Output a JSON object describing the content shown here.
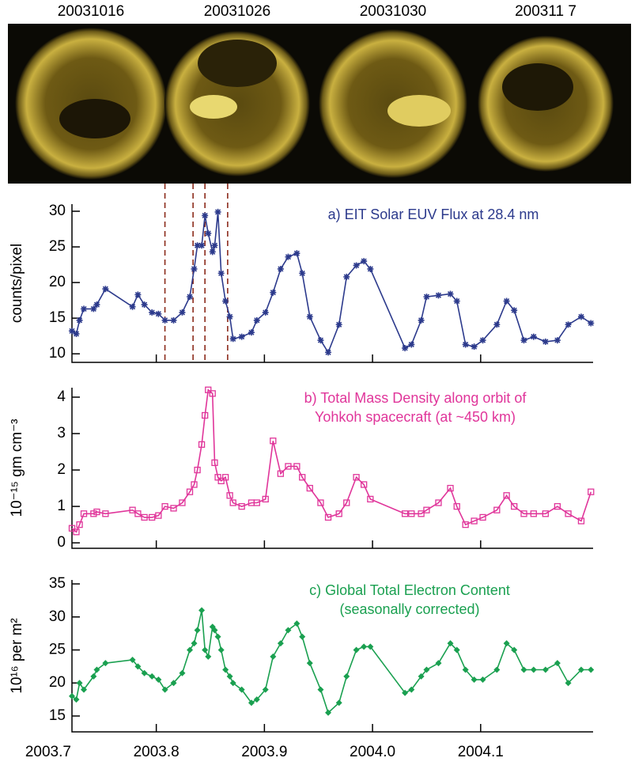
{
  "images": {
    "labels": [
      "20031016",
      "20031026",
      "20031030",
      "200311 7"
    ]
  },
  "chart_data": [
    {
      "type": "line",
      "title": [
        "a) EIT Solar EUV Flux at 28.4 nm"
      ],
      "ylabel": "counts/pixel",
      "color": "#2c3a8c",
      "marker": "star",
      "xlim": [
        2003.722,
        2004.204
      ],
      "xticks": [
        2003.7,
        2003.8,
        2003.9,
        {
          "value": 2004,
          "label": "2004.0"
        },
        2004.1
      ],
      "xtick_labels": false,
      "ylim": [
        8.8,
        31.0
      ],
      "yticks": [
        10,
        15,
        20,
        25,
        30
      ],
      "markers": {
        "x": [
          2003.808,
          2003.834,
          2003.845,
          2003.866
        ],
        "color": "#8b2a1a"
      },
      "x": [
        2003.722,
        2003.726,
        2003.729,
        2003.733,
        2003.742,
        2003.745,
        2003.753,
        2003.778,
        2003.783,
        2003.789,
        2003.796,
        2003.802,
        2003.808,
        2003.816,
        2003.824,
        2003.831,
        2003.835,
        2003.838,
        2003.842,
        2003.845,
        2003.848,
        2003.852,
        2003.854,
        2003.857,
        2003.86,
        2003.864,
        2003.868,
        2003.871,
        2003.879,
        2003.888,
        2003.893,
        2003.901,
        2003.908,
        2003.915,
        2003.922,
        2003.93,
        2003.935,
        2003.942,
        2003.952,
        2003.959,
        2003.969,
        2003.976,
        2003.985,
        2003.992,
        2003.998,
        2004.03,
        2004.036,
        2004.045,
        2004.05,
        2004.061,
        2004.072,
        2004.078,
        2004.086,
        2004.094,
        2004.102,
        2004.115,
        2004.124,
        2004.131,
        2004.14,
        2004.149,
        2004.16,
        2004.171,
        2004.181,
        2004.193,
        2004.202
      ],
      "values": [
        13.2,
        12.8,
        14.7,
        16.3,
        16.3,
        16.9,
        19.1,
        16.6,
        18.3,
        16.9,
        15.8,
        15.6,
        14.7,
        14.7,
        15.8,
        18.0,
        21.9,
        25.2,
        25.2,
        29.4,
        26.9,
        24.3,
        25.2,
        29.9,
        21.3,
        17.4,
        15.2,
        12.1,
        12.4,
        13.0,
        14.7,
        15.8,
        18.6,
        21.9,
        23.6,
        24.1,
        21.3,
        15.2,
        11.9,
        10.2,
        14.1,
        20.8,
        22.4,
        23.0,
        21.9,
        10.8,
        11.3,
        14.7,
        18.0,
        18.2,
        18.4,
        17.4,
        11.3,
        11.0,
        11.9,
        14.1,
        17.4,
        16.1,
        11.9,
        12.4,
        11.7,
        11.9,
        14.1,
        15.2,
        14.3
      ]
    },
    {
      "type": "line",
      "title": [
        "b) Total Mass Density along orbit of",
        "Yohkoh spacecraft (at ~450 km)"
      ],
      "ylabel": "10⁻¹⁵ gm cm⁻³",
      "color": "#e0359a",
      "marker": "square",
      "xlim": [
        2003.722,
        2004.204
      ],
      "xticks": [
        2003.7,
        2003.8,
        2003.9,
        {
          "value": 2004,
          "label": "2004.0"
        },
        2004.1
      ],
      "xtick_labels": false,
      "ylim": [
        -0.15,
        4.26
      ],
      "yticks": [
        0,
        1,
        2,
        3,
        4
      ],
      "x": [
        2003.722,
        2003.726,
        2003.729,
        2003.733,
        2003.742,
        2003.745,
        2003.753,
        2003.778,
        2003.783,
        2003.789,
        2003.796,
        2003.802,
        2003.808,
        2003.816,
        2003.824,
        2003.831,
        2003.835,
        2003.838,
        2003.842,
        2003.845,
        2003.848,
        2003.852,
        2003.854,
        2003.857,
        2003.86,
        2003.864,
        2003.868,
        2003.871,
        2003.879,
        2003.888,
        2003.893,
        2003.901,
        2003.908,
        2003.915,
        2003.922,
        2003.93,
        2003.935,
        2003.942,
        2003.952,
        2003.959,
        2003.969,
        2003.976,
        2003.985,
        2003.992,
        2003.998,
        2004.03,
        2004.036,
        2004.045,
        2004.05,
        2004.061,
        2004.072,
        2004.078,
        2004.086,
        2004.094,
        2004.102,
        2004.115,
        2004.124,
        2004.131,
        2004.14,
        2004.149,
        2004.16,
        2004.171,
        2004.181,
        2004.193,
        2004.202
      ],
      "values": [
        0.4,
        0.3,
        0.5,
        0.8,
        0.8,
        0.85,
        0.8,
        0.9,
        0.8,
        0.7,
        0.7,
        0.75,
        1.0,
        0.95,
        1.1,
        1.4,
        1.6,
        2.0,
        2.7,
        3.5,
        4.2,
        4.1,
        2.2,
        1.8,
        1.7,
        1.8,
        1.3,
        1.1,
        1.0,
        1.1,
        1.1,
        1.2,
        2.8,
        1.9,
        2.1,
        2.1,
        1.8,
        1.5,
        1.1,
        0.7,
        0.8,
        1.1,
        1.8,
        1.6,
        1.2,
        0.8,
        0.8,
        0.8,
        0.9,
        1.1,
        1.5,
        1.0,
        0.5,
        0.6,
        0.7,
        0.9,
        1.3,
        1.0,
        0.8,
        0.8,
        0.8,
        1.0,
        0.8,
        0.6,
        1.4
      ]
    },
    {
      "type": "line",
      "title": [
        "c) Global Total Electron Content",
        "(seasonally corrected)"
      ],
      "ylabel": "10¹⁶ per m²",
      "color": "#1aa050",
      "marker": "diamond",
      "xlim": [
        2003.722,
        2004.204
      ],
      "xticks": [
        2003.7,
        2003.8,
        2003.9,
        {
          "value": 2004,
          "label": "2004.0"
        },
        2004.1
      ],
      "xtick_labels": true,
      "ylim": [
        12.6,
        35.6
      ],
      "yticks": [
        15,
        20,
        25,
        30,
        35
      ],
      "x": [
        2003.722,
        2003.726,
        2003.729,
        2003.733,
        2003.742,
        2003.745,
        2003.753,
        2003.778,
        2003.783,
        2003.789,
        2003.796,
        2003.802,
        2003.808,
        2003.816,
        2003.824,
        2003.831,
        2003.835,
        2003.838,
        2003.842,
        2003.845,
        2003.848,
        2003.852,
        2003.854,
        2003.857,
        2003.86,
        2003.864,
        2003.868,
        2003.871,
        2003.879,
        2003.888,
        2003.893,
        2003.901,
        2003.908,
        2003.915,
        2003.922,
        2003.93,
        2003.935,
        2003.942,
        2003.952,
        2003.959,
        2003.969,
        2003.976,
        2003.985,
        2003.992,
        2003.998,
        2004.03,
        2004.036,
        2004.045,
        2004.05,
        2004.061,
        2004.072,
        2004.078,
        2004.086,
        2004.094,
        2004.102,
        2004.115,
        2004.124,
        2004.131,
        2004.14,
        2004.149,
        2004.16,
        2004.171,
        2004.181,
        2004.193,
        2004.202
      ],
      "values": [
        18,
        17.5,
        20,
        19,
        21,
        22,
        23,
        23.5,
        22.5,
        21.5,
        21,
        20.5,
        19,
        20,
        21.5,
        25,
        26,
        28,
        31,
        25,
        24,
        28.5,
        28,
        27,
        25,
        22,
        21,
        20,
        19,
        17,
        17.5,
        19,
        24,
        26,
        28,
        29,
        27,
        23,
        19,
        15.5,
        17,
        21,
        25,
        25.5,
        25.5,
        18.5,
        19,
        21,
        22,
        23,
        26,
        25,
        22,
        20.5,
        20.5,
        22,
        26,
        25,
        22,
        22,
        22,
        23,
        20,
        22,
        22
      ]
    }
  ]
}
